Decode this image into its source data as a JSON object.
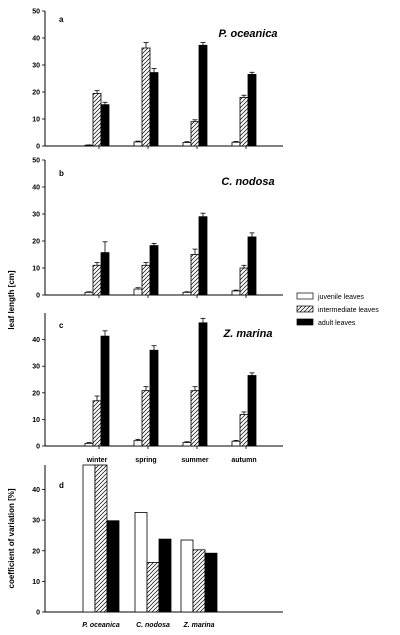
{
  "chart_data": [
    {
      "type": "bar",
      "panel": "a",
      "species": "P. oceanica",
      "categories": [
        "winter",
        "spring",
        "summer",
        "autumn"
      ],
      "series": [
        {
          "name": "juvenile leaves",
          "values": [
            0.3,
            1.5,
            1.3,
            1.4
          ],
          "errors": [
            0.1,
            0.3,
            0.3,
            0.3
          ]
        },
        {
          "name": "intermediate leaves",
          "values": [
            19.5,
            36.3,
            9.0,
            18.0
          ],
          "errors": [
            1.0,
            2.0,
            0.7,
            0.8
          ]
        },
        {
          "name": "adult leaves",
          "values": [
            15.3,
            27.2,
            37.3,
            26.5
          ],
          "errors": [
            0.9,
            1.5,
            1.0,
            0.8
          ]
        }
      ],
      "ylim": [
        0,
        50
      ],
      "yticks": [
        0,
        10,
        20,
        30,
        40,
        50
      ]
    },
    {
      "type": "bar",
      "panel": "b",
      "species": "C. nodosa",
      "categories": [
        "winter",
        "spring",
        "summer",
        "autumn"
      ],
      "series": [
        {
          "name": "juvenile leaves",
          "values": [
            1.0,
            2.2,
            1.0,
            1.5
          ],
          "errors": [
            0.2,
            0.5,
            0.2,
            0.3
          ]
        },
        {
          "name": "intermediate leaves",
          "values": [
            11.0,
            11.0,
            15.0,
            10.0
          ],
          "errors": [
            1.0,
            1.0,
            2.0,
            1.0
          ]
        },
        {
          "name": "adult leaves",
          "values": [
            15.7,
            18.3,
            29.0,
            21.5
          ],
          "errors": [
            4.0,
            0.8,
            1.3,
            1.5
          ]
        }
      ],
      "ylim": [
        0,
        50
      ],
      "yticks": [
        0,
        10,
        20,
        30,
        40,
        50
      ]
    },
    {
      "type": "bar",
      "panel": "c",
      "species": "Z. marina",
      "categories": [
        "winter",
        "spring",
        "summer",
        "autumn"
      ],
      "series": [
        {
          "name": "juvenile leaves",
          "values": [
            1.0,
            2.0,
            1.3,
            1.8
          ],
          "errors": [
            0.3,
            0.5,
            0.3,
            0.3
          ]
        },
        {
          "name": "intermediate leaves",
          "values": [
            17.0,
            20.8,
            20.8,
            11.8
          ],
          "errors": [
            1.8,
            1.5,
            1.5,
            1.0
          ]
        },
        {
          "name": "adult leaves",
          "values": [
            41.3,
            36.0,
            46.3,
            26.5
          ],
          "errors": [
            2.0,
            1.7,
            1.7,
            1.0
          ]
        }
      ],
      "ylim": [
        0,
        50
      ],
      "yticks": [
        0,
        10,
        20,
        30,
        40
      ],
      "xlabel_ticks": [
        "winter",
        "spring",
        "summer",
        "autumn"
      ]
    },
    {
      "type": "bar",
      "panel": "d",
      "categories": [
        "P. oceanica",
        "C. nodosa",
        "Z. marina"
      ],
      "series": [
        {
          "name": "juvenile leaves",
          "values": [
            48.0,
            32.5,
            23.5
          ]
        },
        {
          "name": "intermediate leaves",
          "values": [
            48.0,
            16.2,
            20.3
          ]
        },
        {
          "name": "adult leaves",
          "values": [
            29.8,
            23.8,
            19.2
          ]
        }
      ],
      "ylim": [
        0,
        48
      ],
      "yticks": [
        0,
        10,
        20,
        30,
        40
      ],
      "ylabel": "coefficient of variation [%]"
    }
  ],
  "shared_ylabel": "leaf length [cm]",
  "legend": {
    "position": "right",
    "items": [
      "juvenile leaves",
      "intermediate leaves",
      "adult leaves"
    ]
  },
  "colors": {
    "juvenile": "#ffffff",
    "adult": "#000000",
    "axis": "#000000"
  }
}
